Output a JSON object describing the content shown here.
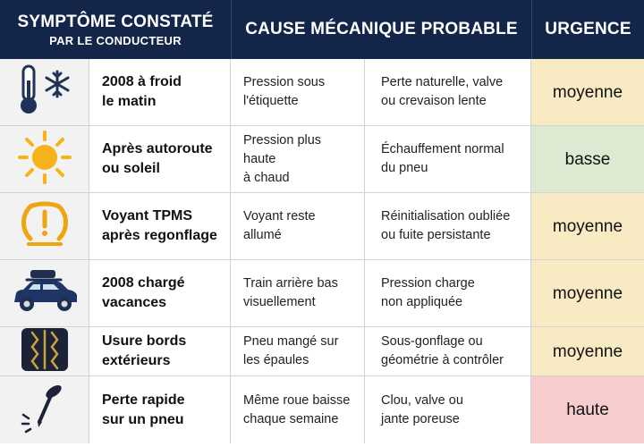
{
  "header": {
    "col1_title": "SYMPTÔME CONSTATÉ",
    "col1_subtitle": "PAR LE CONDUCTEUR",
    "col2_title": "CAUSE MÉCANIQUE PROBABLE",
    "col3_title": "URGENCE"
  },
  "colors": {
    "header_bg": "#14254a",
    "urgency_moyenne": "#f8ebc4",
    "urgency_basse": "#dde9d1",
    "urgency_haute": "#f6cccc"
  },
  "rows": [
    {
      "icon": "thermometer-snowflake-icon",
      "symptom": "2008 à froid\nle matin",
      "cause": "Pression sous\nl'étiquette",
      "probable": "Perte naturelle, valve\nou crevaison lente",
      "urgency": "moyenne"
    },
    {
      "icon": "sun-icon",
      "symptom": "Après autoroute\nou soleil",
      "cause": "Pression plus haute\nà chaud",
      "probable": "Échauffement normal\ndu pneu",
      "urgency": "basse"
    },
    {
      "icon": "tpms-warning-icon",
      "symptom": "Voyant TPMS\naprès regonflage",
      "cause": "Voyant reste\nallumé",
      "probable": "Réinitialisation oubliée\nou fuite persistante",
      "urgency": "moyenne"
    },
    {
      "icon": "loaded-car-icon",
      "symptom": "2008 chargé\nvacances",
      "cause": "Train arrière bas\nvisuellement",
      "probable": "Pression charge\nnon appliquée",
      "urgency": "moyenne"
    },
    {
      "icon": "tire-tread-icon",
      "symptom": "Usure bords\nextérieurs",
      "cause": "Pneu mangé sur\nles épaules",
      "probable": "Sous-gonflage ou\ngéométrie à contrôler",
      "urgency": "moyenne"
    },
    {
      "icon": "nail-icon",
      "symptom": "Perte rapide\nsur un pneu",
      "cause": "Même roue baisse\nchaque semaine",
      "probable": "Clou, valve ou\njante poreuse",
      "urgency": "haute"
    }
  ]
}
